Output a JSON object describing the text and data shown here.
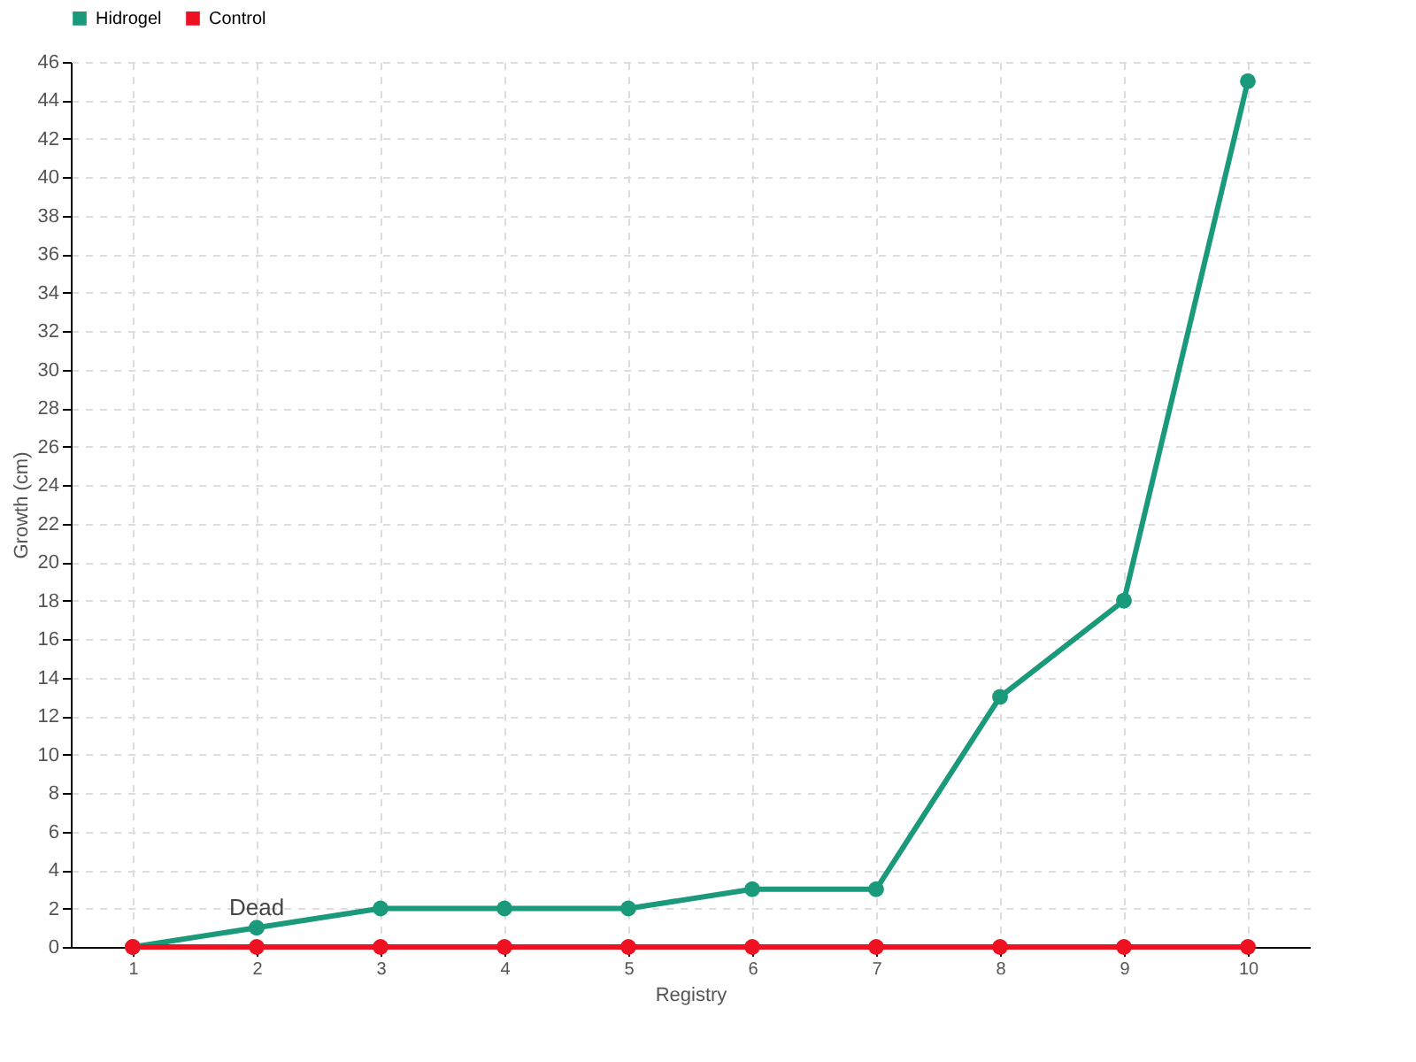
{
  "chart_data": {
    "type": "line",
    "xlabel": "Registry",
    "ylabel": "Growth (cm)",
    "categories": [
      "1",
      "2",
      "3",
      "4",
      "5",
      "6",
      "7",
      "8",
      "9",
      "10"
    ],
    "series": [
      {
        "name": "Hidrogel",
        "color": "#1a9a7a",
        "values": [
          0,
          1,
          2,
          2,
          2,
          3,
          3,
          13,
          18,
          45
        ]
      },
      {
        "name": "Control",
        "color": "#ee1122",
        "values": [
          0,
          0,
          0,
          0,
          0,
          0,
          0,
          0,
          0,
          0
        ]
      }
    ],
    "ylim": [
      0,
      46
    ],
    "yticks": [
      0,
      2,
      4,
      6,
      8,
      10,
      12,
      14,
      16,
      18,
      20,
      22,
      24,
      26,
      28,
      30,
      32,
      34,
      36,
      38,
      40,
      42,
      44,
      46
    ],
    "annotations": [
      {
        "text": "Dead",
        "x": "2",
        "y": 0
      }
    ],
    "grid": true,
    "legend": "top left",
    "marker": "circle",
    "line_style": "solid"
  }
}
